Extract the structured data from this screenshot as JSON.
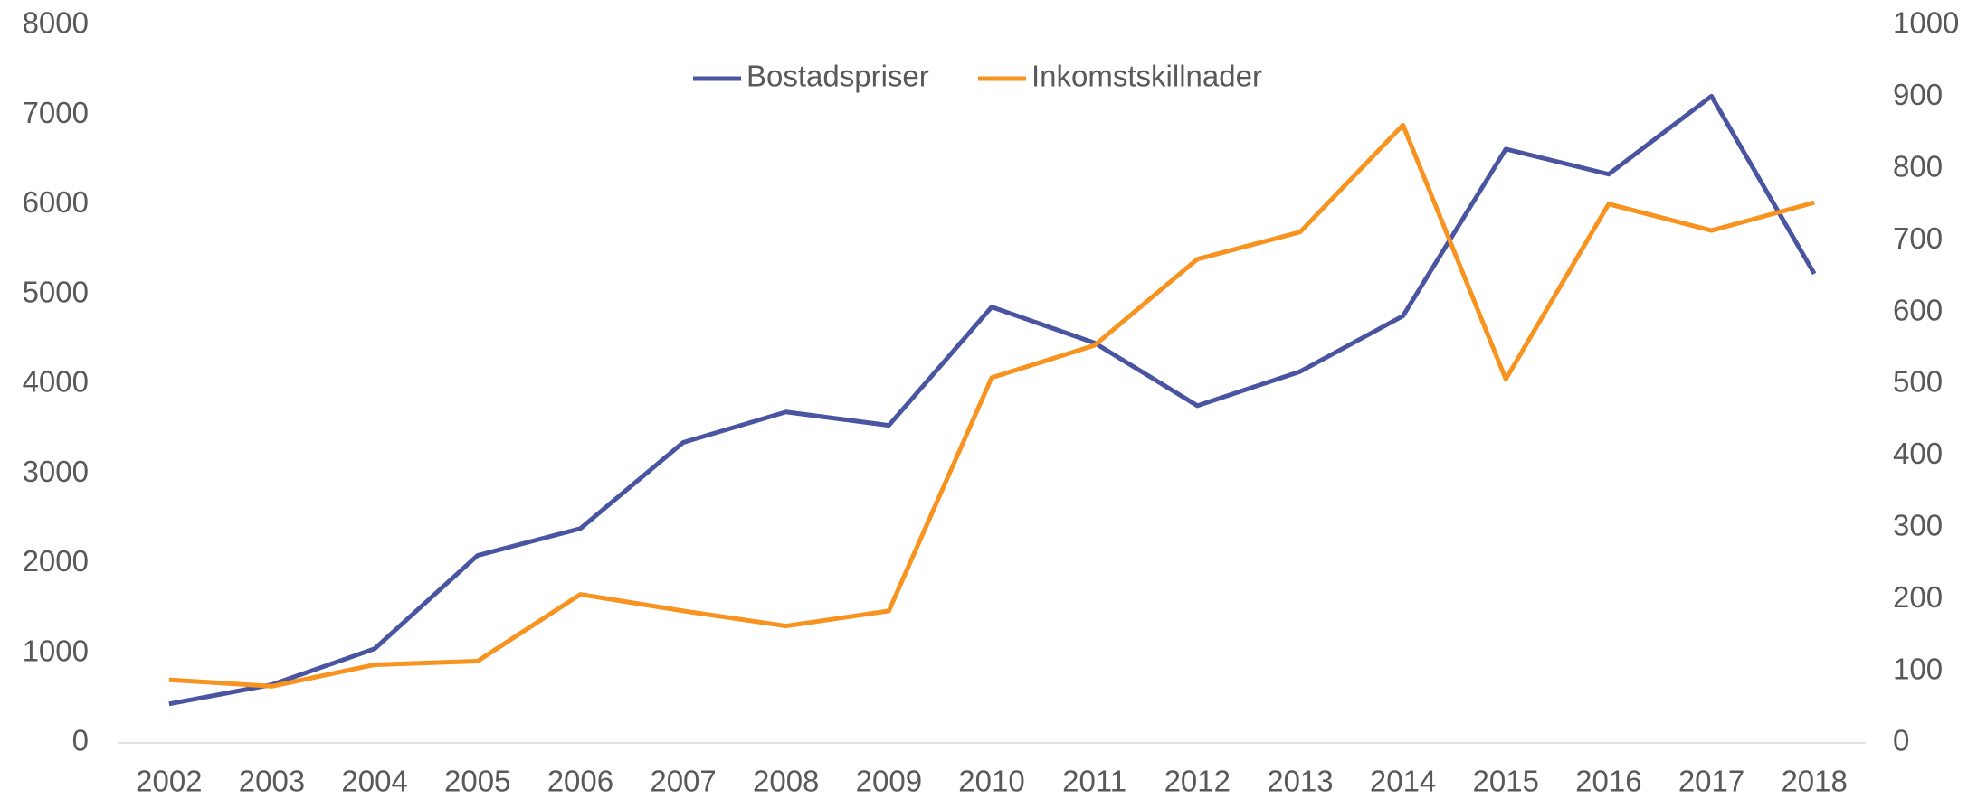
{
  "chart_data": {
    "type": "line",
    "categories": [
      "2002",
      "2003",
      "2004",
      "2005",
      "2006",
      "2007",
      "2008",
      "2009",
      "2010",
      "2011",
      "2012",
      "2013",
      "2014",
      "2015",
      "2016",
      "2017",
      "2018"
    ],
    "series": [
      {
        "name": "Bostadspriser",
        "color": "#4a55a2",
        "values": [
          435,
          650,
          1050,
          2090,
          2390,
          3350,
          3690,
          3540,
          4860,
          4460,
          3760,
          4140,
          4760,
          6620,
          6340,
          7210,
          5230
        ]
      },
      {
        "name": "Inkomstskillnader",
        "color": "#f7931e",
        "axis": "y2",
        "values": [
          88,
          79,
          109,
          114,
          207,
          184,
          163,
          184,
          509,
          554,
          674,
          712,
          861,
          507,
          751,
          714,
          753
        ]
      }
    ],
    "ylim": [
      0,
      8000
    ],
    "yticks": [
      0,
      1000,
      2000,
      3000,
      4000,
      5000,
      6000,
      7000,
      8000
    ],
    "y2lim": [
      0,
      1000
    ],
    "y2ticks": [
      0,
      100,
      200,
      300,
      400,
      500,
      600,
      700,
      800,
      900,
      1000
    ],
    "grid": false,
    "legend": "top"
  }
}
